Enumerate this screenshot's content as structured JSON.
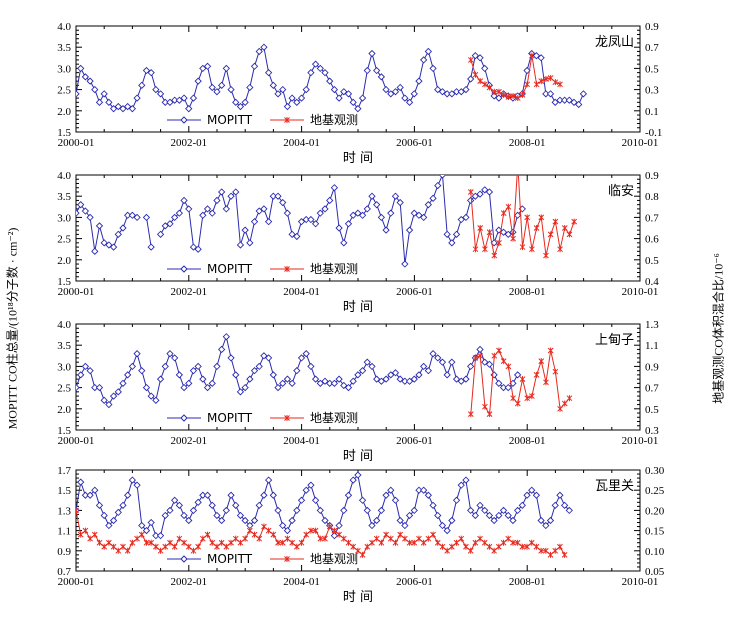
{
  "ylabel_left": "MOPITT CO柱总量/(10¹⁸分子数 · cm⁻²)",
  "ylabel_right": "地基观测CO体积混合比/10⁻⁶",
  "colors": {
    "mopitt": "#2b2bb0",
    "ground": "#e8291e",
    "axis": "#000000"
  },
  "chart_data": [
    {
      "type": "line",
      "station": "龙凤山",
      "xlabel": "时  间",
      "xlim": [
        2000.0,
        2010.0
      ],
      "xticks": [
        "2000-01",
        "2002-01",
        "2004-01",
        "2006-01",
        "2008-01",
        "2010-01"
      ],
      "ylim": [
        1.5,
        4.0
      ],
      "yticks": [
        "1.5",
        "2.0",
        "2.5",
        "3.0",
        "3.5",
        "4.0"
      ],
      "y2lim": [
        -0.1,
        0.9
      ],
      "y2ticks": [
        "-0.1",
        "0.1",
        "0.3",
        "0.5",
        "0.7",
        "0.9"
      ],
      "legend": [
        "MOPITT",
        "地基观测"
      ],
      "series": [
        {
          "name": "MOPITT",
          "start": 2000.0,
          "step": 0.0833,
          "values": [
            2.4,
            3.0,
            2.8,
            2.7,
            2.5,
            2.2,
            2.4,
            2.2,
            2.05,
            2.1,
            2.05,
            2.1,
            2.05,
            2.3,
            2.6,
            2.95,
            2.9,
            2.5,
            2.4,
            2.2,
            2.2,
            2.25,
            2.25,
            2.3,
            2.05,
            2.3,
            2.7,
            3.0,
            3.05,
            2.55,
            2.45,
            2.6,
            3.0,
            2.5,
            2.2,
            2.1,
            2.2,
            2.55,
            3.05,
            3.4,
            3.5,
            2.9,
            2.6,
            2.4,
            2.5,
            2.1,
            2.3,
            2.2,
            2.3,
            2.5,
            2.9,
            3.1,
            3.0,
            2.9,
            2.7,
            2.5,
            2.3,
            2.45,
            2.4,
            2.2,
            2.05,
            2.3,
            2.95,
            3.35,
            2.95,
            2.8,
            2.5,
            2.4,
            2.45,
            2.55,
            2.3,
            2.2,
            2.4,
            2.7,
            3.2,
            3.4,
            3.0,
            2.5,
            2.45,
            2.4,
            2.4,
            2.45,
            2.45,
            2.5,
            2.75,
            3.3,
            3.25,
            3.0,
            2.6,
            2.35,
            2.3,
            2.4,
            2.35,
            2.3,
            2.35,
            2.4,
            2.95,
            3.35,
            3.3,
            3.25,
            2.4,
            2.4,
            2.2,
            2.25,
            2.25,
            2.25,
            2.2,
            2.15,
            2.4
          ]
        },
        {
          "name": "地基观测",
          "start": 2007.0,
          "step": 0.0833,
          "values": [
            0.58,
            0.44,
            0.38,
            0.35,
            0.32,
            0.28,
            0.28,
            0.25,
            0.23,
            0.24,
            0.22,
            0.25,
            0.35,
            0.62,
            0.35,
            0.38,
            0.4,
            0.41,
            0.37,
            0.35
          ]
        }
      ]
    },
    {
      "type": "line",
      "station": "临安",
      "xlabel": "时  间",
      "xlim": [
        2000.0,
        2010.0
      ],
      "xticks": [
        "2000-01",
        "2002-01",
        "2004-01",
        "2006-01",
        "2008-01",
        "2010-01"
      ],
      "ylim": [
        1.5,
        4.0
      ],
      "yticks": [
        "1.5",
        "2.0",
        "2.5",
        "3.0",
        "3.5",
        "4.0"
      ],
      "y2lim": [
        0.4,
        0.9
      ],
      "y2ticks": [
        "0.4",
        "0.5",
        "0.6",
        "0.7",
        "0.8",
        "0.9"
      ],
      "legend": [
        "MOPITT",
        "地基观测"
      ],
      "series": [
        {
          "name": "MOPITT",
          "start": 2000.0,
          "step": 0.0833,
          "values": [
            3.1,
            3.3,
            3.15,
            3.0,
            2.2,
            2.8,
            2.4,
            2.35,
            2.3,
            2.6,
            2.75,
            3.05,
            3.05,
            3.0,
            null,
            3.0,
            2.3,
            null,
            2.6,
            2.8,
            2.85,
            3.0,
            3.1,
            3.4,
            3.2,
            2.3,
            2.25,
            3.05,
            3.2,
            3.1,
            3.4,
            3.6,
            3.2,
            3.5,
            3.6,
            2.35,
            2.7,
            2.4,
            2.9,
            3.15,
            3.2,
            2.9,
            3.5,
            3.5,
            3.35,
            3.1,
            2.6,
            2.55,
            2.9,
            2.95,
            2.95,
            2.85,
            3.1,
            3.2,
            3.4,
            3.7,
            2.75,
            2.4,
            2.85,
            3.05,
            3.1,
            3.05,
            3.2,
            3.5,
            3.3,
            3.0,
            2.7,
            3.1,
            3.5,
            3.35,
            1.9,
            2.7,
            3.1,
            3.05,
            3.0,
            3.3,
            3.45,
            3.75,
            4.0,
            2.6,
            2.4,
            2.6,
            2.95,
            3.0,
            3.4,
            3.5,
            3.55,
            3.65,
            3.6,
            2.4,
            2.7,
            2.65,
            2.6,
            2.65,
            3.05,
            3.2
          ]
        },
        {
          "name": "地基观测",
          "start": 2007.0,
          "step": 0.0833,
          "values": [
            0.82,
            0.55,
            0.65,
            0.55,
            0.63,
            0.52,
            0.58,
            0.72,
            0.75,
            0.6,
            0.95,
            0.56,
            0.7,
            0.55,
            0.65,
            0.7,
            0.52,
            0.62,
            0.68,
            0.55,
            0.65,
            0.62,
            0.68
          ]
        }
      ]
    },
    {
      "type": "line",
      "station": "上甸子",
      "xlabel": "时  间",
      "xlim": [
        2000.0,
        2010.0
      ],
      "xticks": [
        "2000-01",
        "2002-01",
        "2004-01",
        "2006-01",
        "2008-01",
        "2010-01"
      ],
      "ylim": [
        1.5,
        4.0
      ],
      "yticks": [
        "1.5",
        "2.0",
        "2.5",
        "3.0",
        "3.5",
        "4.0"
      ],
      "y2lim": [
        0.3,
        1.3
      ],
      "y2ticks": [
        "0.3",
        "0.5",
        "0.7",
        "0.9",
        "1.1",
        "1.3"
      ],
      "legend": [
        "MOPITT",
        "地基观测"
      ],
      "series": [
        {
          "name": "MOPITT",
          "start": 2000.0,
          "step": 0.0833,
          "values": [
            2.5,
            2.8,
            3.0,
            2.9,
            2.5,
            2.5,
            2.2,
            2.1,
            2.3,
            2.4,
            2.6,
            2.8,
            3.0,
            3.3,
            2.9,
            2.5,
            2.3,
            2.2,
            2.7,
            3.0,
            3.3,
            3.2,
            2.8,
            2.5,
            2.6,
            2.9,
            3.0,
            2.7,
            2.5,
            2.6,
            3.0,
            3.4,
            3.7,
            3.2,
            2.8,
            2.4,
            2.5,
            2.7,
            2.9,
            3.0,
            3.25,
            3.2,
            2.8,
            2.5,
            2.6,
            2.7,
            2.6,
            2.9,
            3.2,
            3.3,
            3.0,
            2.7,
            2.6,
            2.65,
            2.6,
            2.6,
            2.7,
            2.55,
            2.5,
            2.65,
            2.8,
            2.9,
            3.1,
            3.0,
            2.7,
            2.65,
            2.7,
            2.8,
            2.85,
            2.7,
            2.65,
            2.65,
            2.7,
            2.8,
            3.0,
            2.9,
            3.3,
            3.2,
            3.1,
            2.8,
            3.1,
            2.7,
            2.65,
            2.7,
            3.0,
            3.2,
            3.4,
            3.1,
            3.05,
            2.8,
            2.6,
            2.5,
            2.5,
            2.6,
            2.8
          ]
        },
        {
          "name": "地基观测",
          "start": 2007.0,
          "step": 0.0833,
          "values": [
            0.45,
            0.98,
            1.0,
            0.52,
            0.45,
            1.0,
            1.05,
            0.95,
            0.9,
            0.6,
            0.55,
            0.78,
            0.6,
            0.62,
            0.82,
            0.95,
            0.75,
            1.05,
            0.85,
            0.5,
            0.55,
            0.6
          ]
        }
      ]
    },
    {
      "type": "line",
      "station": "瓦里关",
      "xlabel": "时  间",
      "xlim": [
        2000.0,
        2010.0
      ],
      "xticks": [
        "2000-01",
        "2002-01",
        "2004-01",
        "2006-01",
        "2008-01",
        "2010-01"
      ],
      "ylim": [
        0.7,
        1.7
      ],
      "yticks": [
        "0.7",
        "0.9",
        "1.1",
        "1.3",
        "1.5",
        "1.7"
      ],
      "y2lim": [
        0.05,
        0.3
      ],
      "y2ticks": [
        "0.05",
        "0.10",
        "0.15",
        "0.20",
        "0.25",
        "0.30"
      ],
      "legend": [
        "MOPITT",
        "地基观测"
      ],
      "series": [
        {
          "name": "MOPITT",
          "start": 2000.0,
          "step": 0.0833,
          "values": [
            1.3,
            1.58,
            1.45,
            1.45,
            1.5,
            1.35,
            1.25,
            1.15,
            1.2,
            1.28,
            1.35,
            1.45,
            1.6,
            1.55,
            1.15,
            1.1,
            1.18,
            1.05,
            1.05,
            1.25,
            1.3,
            1.4,
            1.35,
            1.25,
            1.2,
            1.3,
            1.38,
            1.45,
            1.45,
            1.35,
            1.25,
            1.2,
            1.3,
            1.45,
            1.35,
            1.25,
            1.2,
            1.15,
            1.2,
            1.35,
            1.45,
            1.6,
            1.45,
            1.3,
            1.15,
            1.1,
            1.2,
            1.3,
            1.4,
            1.5,
            1.55,
            1.4,
            1.3,
            1.2,
            1.15,
            1.05,
            1.15,
            1.3,
            1.45,
            1.6,
            1.65,
            1.4,
            1.3,
            1.15,
            1.2,
            1.3,
            1.45,
            1.5,
            1.4,
            1.2,
            1.15,
            1.25,
            1.3,
            1.5,
            1.5,
            1.45,
            1.35,
            1.25,
            1.15,
            1.1,
            1.2,
            1.4,
            1.55,
            1.6,
            1.3,
            1.25,
            1.35,
            1.3,
            1.25,
            1.2,
            1.25,
            1.3,
            1.25,
            1.2,
            1.3,
            1.35,
            1.45,
            1.5,
            1.45,
            1.2,
            1.15,
            1.2,
            1.35,
            1.45,
            1.35,
            1.3
          ]
        },
        {
          "name": "地基观测",
          "start": 2000.0,
          "step": 0.0833,
          "values": [
            0.2,
            0.14,
            0.15,
            0.13,
            0.14,
            0.12,
            0.11,
            0.12,
            0.11,
            0.1,
            0.11,
            0.1,
            0.12,
            0.13,
            0.14,
            0.12,
            0.12,
            0.11,
            0.1,
            0.11,
            0.12,
            0.11,
            0.13,
            0.12,
            0.11,
            0.1,
            0.11,
            0.13,
            0.14,
            0.12,
            0.11,
            0.12,
            0.11,
            0.12,
            0.13,
            0.12,
            0.13,
            0.15,
            0.14,
            0.13,
            0.16,
            0.15,
            0.14,
            0.12,
            0.12,
            0.13,
            0.12,
            0.11,
            0.12,
            0.14,
            0.15,
            0.15,
            0.13,
            0.13,
            0.16,
            0.15,
            0.14,
            0.13,
            0.12,
            0.11,
            0.1,
            0.09,
            0.11,
            0.12,
            0.13,
            0.12,
            0.14,
            0.13,
            0.12,
            0.14,
            0.13,
            0.12,
            0.12,
            0.13,
            0.12,
            0.13,
            0.14,
            0.12,
            0.11,
            0.1,
            0.11,
            0.12,
            0.13,
            0.11,
            0.1,
            0.12,
            0.13,
            0.12,
            0.11,
            0.1,
            0.11,
            0.12,
            0.13,
            0.12,
            0.12,
            0.11,
            0.11,
            0.12,
            0.11,
            0.1,
            0.1,
            0.09,
            0.1,
            0.11,
            0.09
          ]
        }
      ]
    }
  ]
}
